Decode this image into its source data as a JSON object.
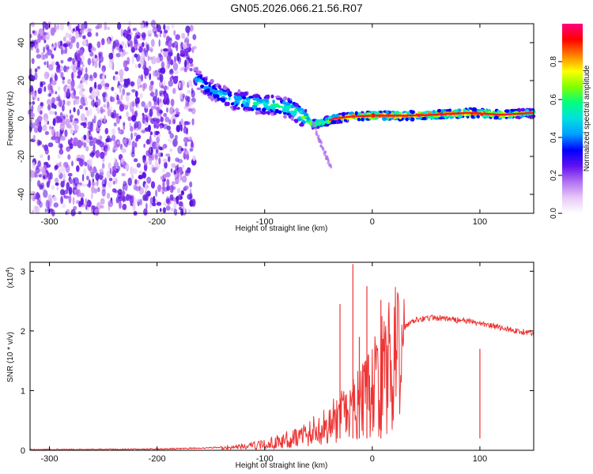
{
  "title": "GN05.2026.066.21.56.R07",
  "chart_data": [
    {
      "type": "heatmap",
      "name": "spectrogram",
      "xlabel": "Height of straight line (km)",
      "ylabel": "Frequency (Hz)",
      "xlim": [
        -318,
        150
      ],
      "ylim": [
        -50,
        50
      ],
      "xticks": [
        -300,
        -200,
        -100,
        0,
        100
      ],
      "yticks": [
        -40,
        -20,
        0,
        20,
        40
      ],
      "colorbar": {
        "label": "Normalized spectral amplitude",
        "range": [
          0,
          1
        ],
        "ticks": [
          "0.0",
          "0.2",
          "0.4",
          "0.6",
          "0.8"
        ],
        "tick_values": [
          0.0,
          0.2,
          0.4,
          0.6,
          0.8
        ],
        "colors": [
          "#ffffff",
          "#e8c8f8",
          "#b070f0",
          "#6010f0",
          "#0000ff",
          "#00a0ff",
          "#00e0e0",
          "#00ff80",
          "#80ff00",
          "#ffff00",
          "#ff8000",
          "#ff0000",
          "#ff0080"
        ]
      },
      "signal_track": {
        "x": [
          -165,
          -150,
          -130,
          -110,
          -90,
          -75,
          -65,
          -55,
          -45,
          -35,
          -20,
          0,
          30,
          60,
          90,
          120,
          150
        ],
        "freq": [
          22,
          15,
          10,
          8,
          7,
          5,
          1,
          -3,
          -2,
          0,
          1,
          1.5,
          1.5,
          2,
          3,
          2,
          3
        ],
        "amplitude": [
          0.5,
          0.45,
          0.5,
          0.55,
          0.6,
          0.6,
          0.65,
          0.7,
          0.75,
          0.8,
          0.85,
          0.95,
          0.98,
          0.98,
          0.95,
          0.9,
          0.7
        ]
      },
      "noise_region": {
        "x_from": -318,
        "x_to": -165,
        "amplitude": 0.3
      }
    },
    {
      "type": "line",
      "name": "snr",
      "xlabel": "Height of straight line (km)",
      "ylabel": "SNR (10 * v/v)",
      "multiplier": "(x10",
      "multiplier_exp": "4",
      "multiplier_close": ")",
      "xlim": [
        -318,
        150
      ],
      "ylim": [
        0,
        3.15
      ],
      "xticks": [
        -300,
        -200,
        -100,
        0,
        100
      ],
      "yticks": [
        0,
        1,
        2,
        3
      ],
      "color": "#ee3333",
      "envelope": {
        "x": [
          -318,
          -200,
          -150,
          -120,
          -100,
          -80,
          -60,
          -40,
          -20,
          -5,
          10,
          25,
          40,
          60,
          80,
          100,
          120,
          150
        ],
        "y": [
          0.01,
          0.02,
          0.04,
          0.08,
          0.12,
          0.22,
          0.35,
          0.55,
          0.8,
          1.1,
          1.6,
          2.0,
          2.2,
          2.22,
          2.18,
          2.13,
          2.05,
          1.95
        ]
      },
      "spikes": [
        {
          "x": -18,
          "y": 3.12
        },
        {
          "x": -5,
          "y": 2.75
        },
        {
          "x": -30,
          "y": 2.45
        },
        {
          "x": 8,
          "y": 2.52
        },
        {
          "x": -12,
          "y": 1.9
        },
        {
          "x": 100,
          "y": 1.7
        }
      ]
    }
  ]
}
